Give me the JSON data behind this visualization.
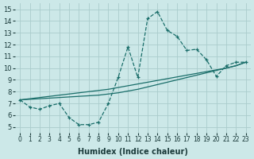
{
  "xlabel": "Humidex (Indice chaleur)",
  "xlim": [
    -0.5,
    23.5
  ],
  "ylim": [
    4.5,
    15.5
  ],
  "xticks": [
    0,
    1,
    2,
    3,
    4,
    5,
    6,
    7,
    8,
    9,
    10,
    11,
    12,
    13,
    14,
    15,
    16,
    17,
    18,
    19,
    20,
    21,
    22,
    23
  ],
  "yticks": [
    5,
    6,
    7,
    8,
    9,
    10,
    11,
    12,
    13,
    14,
    15
  ],
  "bg_color": "#cce8e8",
  "grid_color": "#aacccc",
  "line_color": "#1a6e6a",
  "curve1_x": [
    0,
    1,
    2,
    3,
    4,
    5,
    6,
    7,
    8,
    9,
    10,
    11,
    12,
    13,
    14,
    15,
    16,
    17,
    18,
    19,
    20,
    21,
    22,
    23
  ],
  "curve1_y": [
    7.3,
    6.7,
    6.5,
    6.8,
    7.0,
    5.8,
    5.2,
    5.2,
    5.4,
    7.0,
    9.2,
    11.8,
    9.2,
    14.2,
    14.8,
    13.2,
    12.7,
    11.5,
    11.6,
    10.7,
    9.3,
    10.2,
    10.5,
    10.5
  ],
  "curve2_x": [
    0,
    1,
    2,
    3,
    4,
    5,
    6,
    7,
    8,
    9,
    10,
    11,
    12,
    13,
    14,
    15,
    16,
    17,
    18,
    19,
    20,
    21,
    22,
    23
  ],
  "curve2_y": [
    7.3,
    7.4,
    7.5,
    7.6,
    7.7,
    7.8,
    7.9,
    8.0,
    8.1,
    8.2,
    8.35,
    8.5,
    8.65,
    8.8,
    8.95,
    9.1,
    9.25,
    9.4,
    9.55,
    9.7,
    9.85,
    10.0,
    10.2,
    10.5
  ],
  "curve3_x": [
    0,
    1,
    2,
    3,
    4,
    5,
    6,
    7,
    8,
    9,
    10,
    11,
    12,
    13,
    14,
    15,
    16,
    17,
    18,
    19,
    20,
    21,
    22,
    23
  ],
  "curve3_y": [
    7.3,
    7.35,
    7.4,
    7.45,
    7.5,
    7.55,
    7.6,
    7.65,
    7.7,
    7.8,
    7.9,
    8.05,
    8.2,
    8.4,
    8.6,
    8.8,
    9.0,
    9.2,
    9.4,
    9.6,
    9.8,
    10.0,
    10.2,
    10.5
  ]
}
